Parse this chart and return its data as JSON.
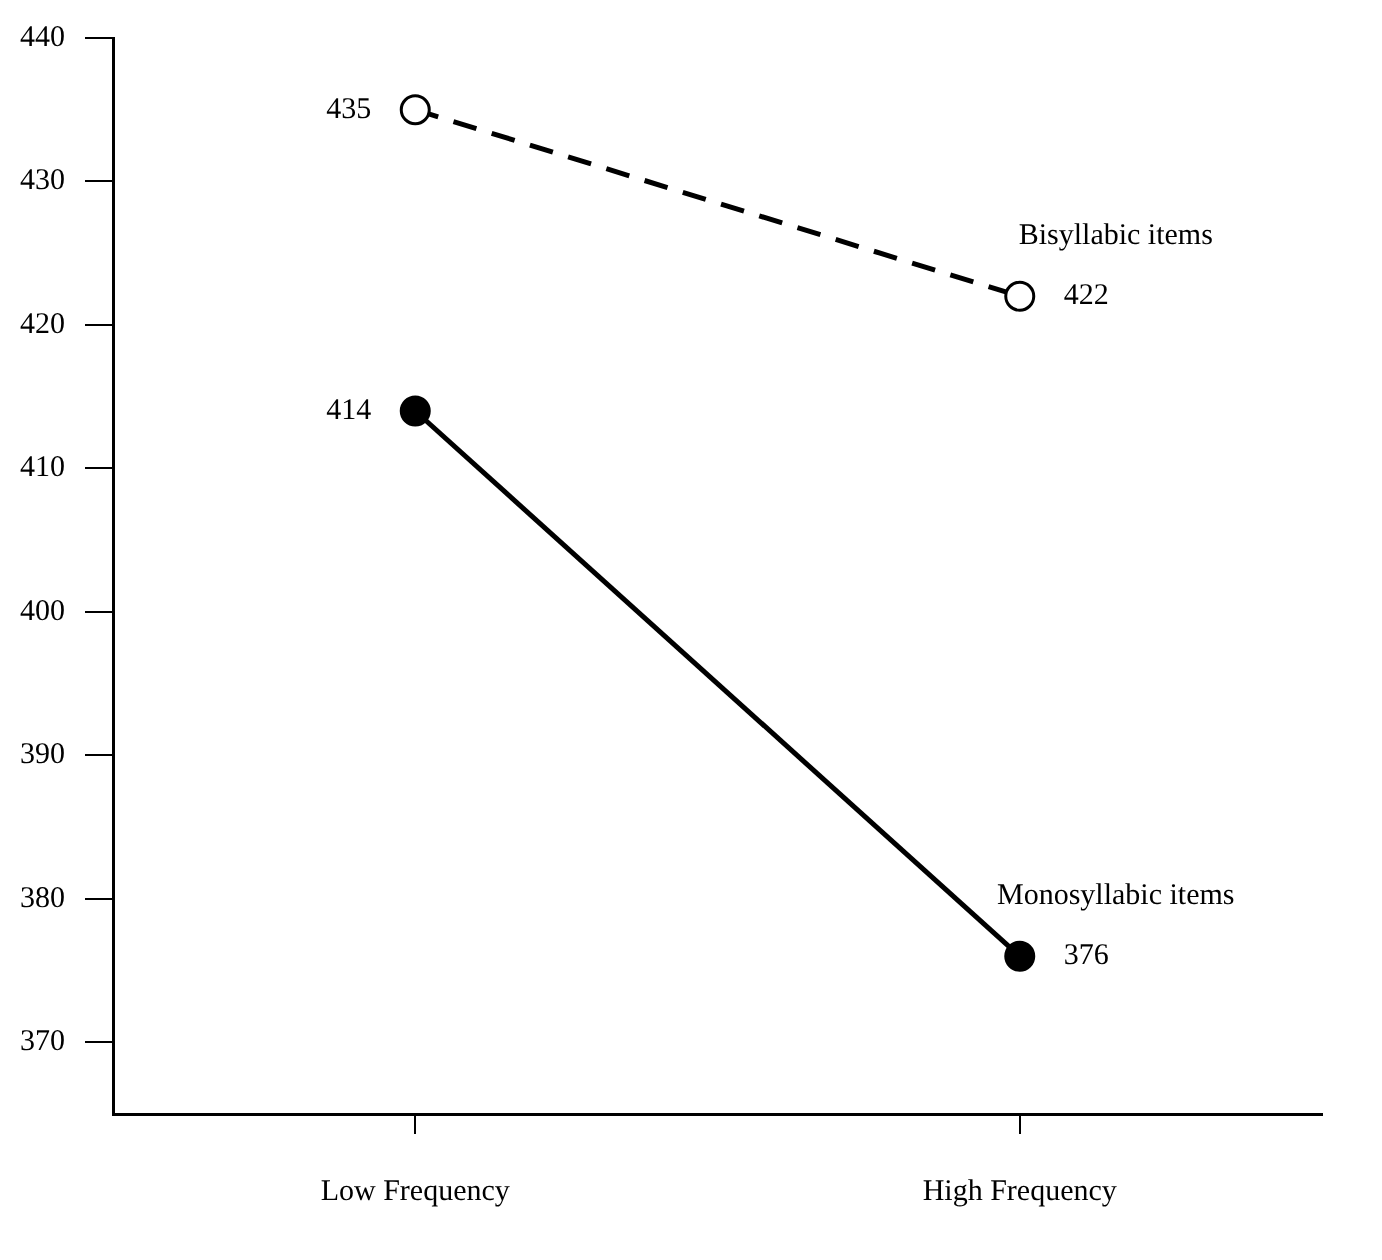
{
  "chart_data": {
    "type": "line",
    "categories": [
      "Low Frequency",
      "High Frequency"
    ],
    "series": [
      {
        "name": "Bisyllabic items",
        "color": "#000000",
        "values": [
          435,
          422
        ],
        "line_style": "dashed"
      },
      {
        "name": "Monosyllabic items",
        "color": "#000000",
        "values": [
          414,
          376
        ],
        "line_style": "solid"
      }
    ],
    "ylim": [
      365,
      440
    ],
    "yticks": [
      370,
      380,
      390,
      400,
      410,
      420,
      430,
      440
    ],
    "marker": "circle",
    "grid": false,
    "legend": false,
    "data_labels": true
  }
}
